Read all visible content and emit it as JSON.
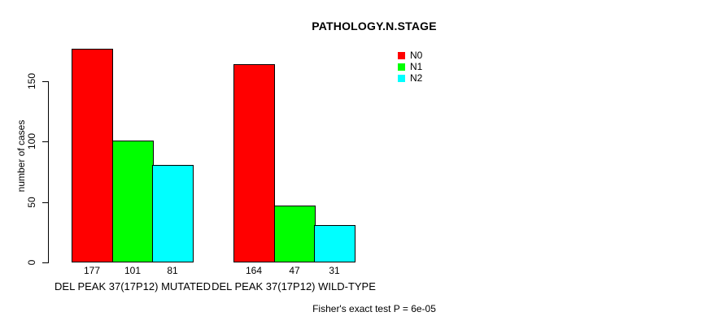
{
  "chart_data": {
    "type": "bar",
    "title": "PATHOLOGY.N.STAGE",
    "ylabel": "number of cases",
    "xlabel": "",
    "categories": [
      "DEL PEAK 37(17P12) MUTATED",
      "DEL PEAK 37(17P12) WILD-TYPE"
    ],
    "series": [
      {
        "name": "N0",
        "color": "#ff0000",
        "values": [
          177,
          164
        ]
      },
      {
        "name": "N1",
        "color": "#00ff00",
        "values": [
          101,
          47
        ]
      },
      {
        "name": "N2",
        "color": "#00ffff",
        "values": [
          81,
          31
        ]
      }
    ],
    "value_labels_shown": true,
    "y_ticks": [
      0,
      50,
      100,
      150
    ],
    "ylim": [
      0,
      180
    ],
    "grid": false,
    "legend_position": "top-right",
    "legend_entries": [
      "N0",
      "N1",
      "N2"
    ],
    "footnote": "Fisher's exact test P = 6e-05",
    "bar_border_color": "#000000",
    "axis_color": "#000000",
    "background_color": "#ffffff"
  }
}
